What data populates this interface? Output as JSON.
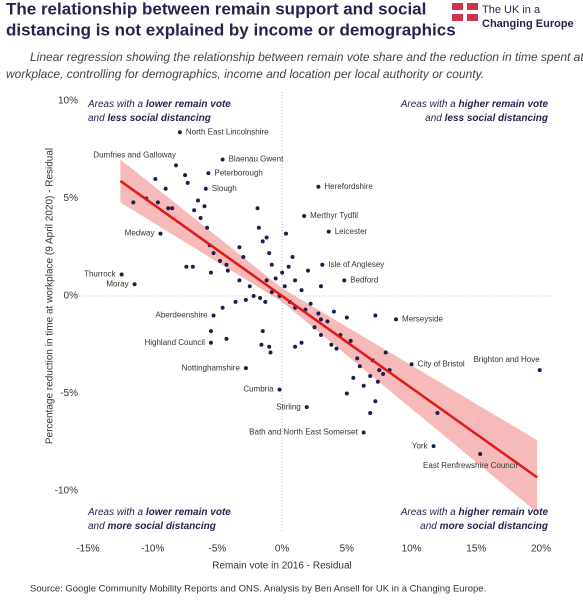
{
  "logo": {
    "line1": "The UK in a",
    "line2": "Changing Europe"
  },
  "chart_data": {
    "type": "scatter",
    "title": [
      "The relationship between remain support and social",
      "distancing is not explained by income or demographics"
    ],
    "subtitle": [
      "Linear regression showing the relationship between remain vote share and the reduction in time spent at",
      "workplace, controlling for demographics, income and location per local authority or county."
    ],
    "x_label": "Remain vote in 2016 - Residual",
    "y_label": "Percentage reduction in time at workplace (9 April 2020) - Residual",
    "source": "Source: Google Community Mobility Reports and ONS. Analysis by Ben Ansell for UK in a Changing Europe.",
    "xlim": [
      -15,
      20
    ],
    "ylim": [
      -10,
      10
    ],
    "xticks": [
      {
        "value": -15,
        "label": "-15%"
      },
      {
        "value": -10,
        "label": "-10%"
      },
      {
        "value": -5,
        "label": "-5%"
      },
      {
        "value": 0,
        "label": "0%"
      },
      {
        "value": 5,
        "label": "5%"
      },
      {
        "value": 10,
        "label": "10%"
      },
      {
        "value": 15,
        "label": "15%"
      },
      {
        "value": 20,
        "label": "20%"
      }
    ],
    "yticks": [
      {
        "value": -10,
        "label": "-10%"
      },
      {
        "value": -5,
        "label": "-5%"
      },
      {
        "value": 0,
        "label": "0%"
      },
      {
        "value": 5,
        "label": "5%"
      },
      {
        "value": 10,
        "label": "10%"
      }
    ],
    "zero_lines": true,
    "point_color": "#1e1e4d",
    "x": [
      -7.9,
      -8.2,
      -4.6,
      -5.7,
      -5.9,
      2.8,
      1.7,
      3.6,
      -9.4,
      3.1,
      4.8,
      -12.4,
      -11.4,
      -5.3,
      8.8,
      -5.5,
      10.0,
      19.9,
      -2.8,
      -0.2,
      1.9,
      6.3,
      11.7,
      15.3,
      -11.5,
      -10.5,
      -9.8,
      -9.6,
      -9.0,
      -8.8,
      -8.5,
      -7.5,
      -7.3,
      -6.8,
      -6.5,
      -6.3,
      -6.0,
      -5.8,
      -5.6,
      -5.3,
      -7.4,
      -6.9,
      -5.5,
      -4.8,
      -4.3,
      -4.2,
      -3.3,
      -3.0,
      -3.3,
      -2.5,
      -2.2,
      -2.8,
      -3.6,
      -4.6,
      -4.3,
      -5.5,
      -1.8,
      -1.5,
      -1.9,
      -1.2,
      -1.0,
      -0.8,
      -0.5,
      -1.2,
      -0.8,
      -1.7,
      -1.3,
      -0.2,
      0.2,
      0.5,
      0.8,
      1.0,
      1.5,
      0.6,
      1.0,
      1.8,
      2.2,
      2.8,
      2.5,
      3.0,
      1.5,
      1.0,
      -1.5,
      -1.6,
      -1.0,
      -0.9,
      3.5,
      4.0,
      4.5,
      4.2,
      3.8,
      5.0,
      5.3,
      5.8,
      6.0,
      5.5,
      6.3,
      5.0,
      7.0,
      7.5,
      6.8,
      7.4,
      7.2,
      7.2,
      8.0,
      7.8,
      8.3,
      3.0,
      2.0,
      3.0,
      6.8,
      12.0,
      0.3,
      0.0
    ],
    "values": [
      8.4,
      6.7,
      7.0,
      6.3,
      5.5,
      5.6,
      4.1,
      3.3,
      3.2,
      1.6,
      0.8,
      1.1,
      0.6,
      -1.0,
      -1.2,
      -2.4,
      -3.5,
      -3.8,
      -3.7,
      -4.8,
      -5.7,
      -7.0,
      -7.7,
      -8.1,
      4.8,
      5.0,
      6.0,
      4.8,
      5.5,
      4.5,
      4.5,
      6.2,
      5.8,
      4.4,
      4.9,
      4.0,
      4.6,
      3.5,
      2.6,
      2.2,
      1.5,
      1.5,
      1.2,
      1.8,
      1.6,
      1.3,
      2.5,
      2.0,
      0.8,
      0.5,
      0.0,
      -0.2,
      -0.3,
      -0.6,
      -2.2,
      -1.8,
      3.5,
      2.8,
      4.5,
      3.0,
      2.2,
      1.6,
      0.9,
      0.8,
      0.2,
      -0.1,
      -0.3,
      0.0,
      0.5,
      1.5,
      2.0,
      0.8,
      0.3,
      -0.3,
      -0.6,
      -0.7,
      -0.4,
      -0.9,
      -1.6,
      -2.0,
      -2.4,
      -2.6,
      -1.8,
      -2.5,
      -2.6,
      -2.9,
      -1.3,
      -0.8,
      -2.0,
      -2.7,
      -2.5,
      -1.1,
      -2.3,
      -3.2,
      -3.6,
      -4.2,
      -4.6,
      -5.0,
      -3.3,
      -3.8,
      -4.1,
      -4.4,
      -5.4,
      -1.0,
      -2.9,
      -4.0,
      -3.8,
      -1.2,
      1.3,
      0.5,
      -6.0,
      -6.0,
      3.2,
      1.2
    ],
    "labels": [
      "North East Lincolnshire",
      "Dumfries and Galloway",
      "Blaenau Gwent",
      "Peterborough",
      "Slough",
      "Herefordshire",
      "Merthyr Tydfil",
      "Leicester",
      "Medway",
      "Isle of Anglesey",
      "Bedford",
      "Thurrock",
      "Moray",
      "Aberdeenshire",
      "Merseyside",
      "Highland Council",
      "City of Bristol",
      "Brighton and Hove",
      "Nottinghamshire",
      "Cumbria",
      "Stirling",
      "Bath and North East Somerset",
      "York",
      "East Renfrewshire Council",
      null,
      null,
      null,
      null,
      null,
      null,
      null,
      null,
      null,
      null,
      null,
      null,
      null,
      null,
      null,
      null,
      null,
      null,
      null,
      null,
      null,
      null,
      null,
      null,
      null,
      null,
      null,
      null,
      null,
      null,
      null,
      null,
      null,
      null,
      null,
      null,
      null,
      null,
      null,
      null,
      null,
      null,
      null,
      null,
      null,
      null,
      null,
      null,
      null,
      null,
      null,
      null,
      null,
      null,
      null,
      null,
      null,
      null,
      null,
      null,
      null,
      null,
      null,
      null,
      null,
      null,
      null,
      null,
      null,
      null,
      null,
      null,
      null,
      null,
      null,
      null,
      null,
      null,
      null,
      null,
      null,
      null,
      null,
      null,
      null,
      null,
      null,
      null,
      null,
      null
    ],
    "fit": {
      "color": "#e01818",
      "x": [
        -12.5,
        19.7
      ],
      "y": [
        5.9,
        -9.3
      ]
    },
    "band": {
      "color": "#f3a3a3",
      "x": [
        -12.5,
        0,
        19.7
      ],
      "upper": [
        7.0,
        0.4,
        -7.4
      ],
      "lower": [
        4.8,
        -0.3,
        -11.1
      ]
    },
    "annotations": [
      {
        "line1": [
          "Areas with a ",
          "lower remain vote"
        ],
        "line2": [
          "and ",
          "less social distancing"
        ]
      },
      {
        "line1": [
          "Areas with a ",
          "higher remain vote"
        ],
        "line2": [
          "and ",
          "less social distancing"
        ]
      },
      {
        "line1": [
          "Areas with a ",
          "lower remain vote"
        ],
        "line2": [
          "and ",
          "more social distancing"
        ]
      },
      {
        "line1": [
          "Areas with a ",
          "higher remain vote"
        ],
        "line2": [
          "and ",
          "more social distancing"
        ]
      }
    ]
  }
}
